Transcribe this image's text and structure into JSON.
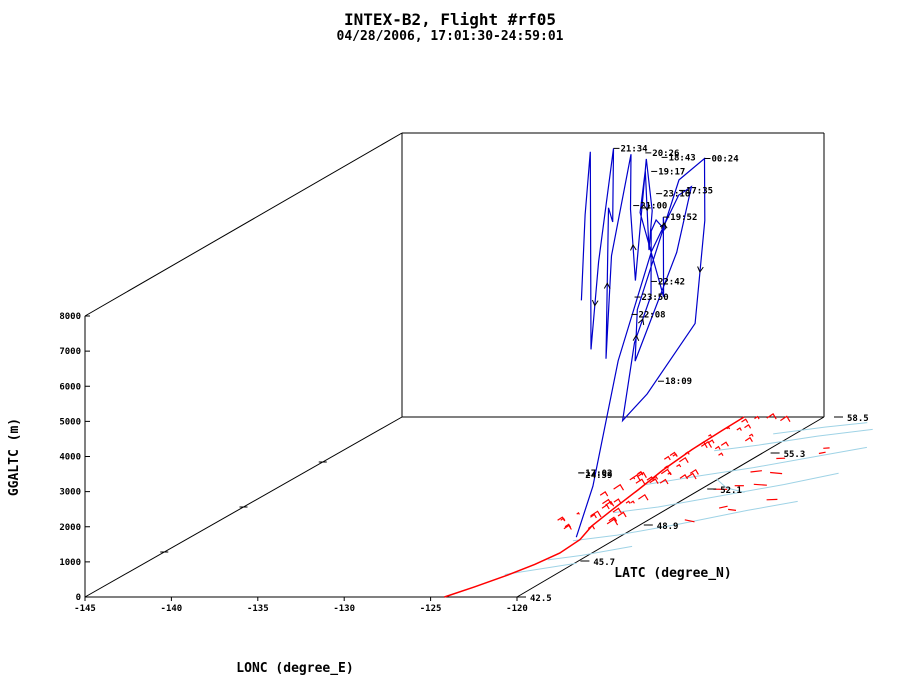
{
  "chart_data": {
    "type": "line",
    "title": "INTEX-B2, Flight #rf05",
    "subtitle": "04/28/2006, 17:01:30-24:59:01",
    "xlabel": "LONC (degree_E)",
    "ylabel": "LATC (degree_N)",
    "zlabel": "GGALTC (m)",
    "xlim": [
      -145,
      -120
    ],
    "ylim": [
      42.5,
      58.5
    ],
    "zlim": [
      0,
      8000
    ],
    "x_ticks": [
      "-145",
      "-140",
      "-135",
      "-130",
      "-125",
      "-120"
    ],
    "y_ticks": [
      "42.5",
      "45.7",
      "48.9",
      "52.1",
      "55.3",
      "58.5"
    ],
    "z_ticks": [
      "0",
      "1000",
      "2000",
      "3000",
      "4000",
      "5000",
      "6000",
      "7000",
      "8000"
    ],
    "colors": {
      "track": "#0000cc",
      "land": "#ff0000",
      "rivers": "#9fd3e6",
      "axes": "#000000"
    },
    "series": [
      {
        "points": [
          {
            "lon": -122.3,
            "lat": 47.5,
            "alt": 100
          },
          {
            "lon": -122.6,
            "lat": 48.6,
            "alt": 1200
          },
          {
            "lon": -123.2,
            "lat": 50.4,
            "alt": 4200
          },
          {
            "lon": -123.8,
            "lat": 52.6,
            "alt": 6600
          },
          {
            "lon": -124.4,
            "lat": 54.5,
            "alt": 7600
          },
          {
            "lon": -124.7,
            "lat": 55.4,
            "alt": 7550
          },
          {
            "lon": -124.4,
            "lat": 54.4,
            "alt": 6000
          },
          {
            "lon": -123.6,
            "lat": 51.6,
            "alt": 3800
          },
          {
            "lon": -123.7,
            "lat": 51.8,
            "alt": 5200
          },
          {
            "lon": -124.5,
            "lat": 54.6,
            "alt": 8000
          },
          {
            "lon": -125.2,
            "lat": 56.5,
            "alt": 8000
          },
          {
            "lon": -125.3,
            "lat": 56.6,
            "alt": 6200
          },
          {
            "lon": -125.4,
            "lat": 56.2,
            "alt": 3400
          },
          {
            "lon": -126.0,
            "lat": 54.3,
            "alt": 2000
          },
          {
            "lon": -126.5,
            "lat": 53.5,
            "alt": 1500
          },
          {
            "lon": -127.3,
            "lat": 54.8,
            "alt": 3300
          },
          {
            "lon": -128.3,
            "lat": 56.5,
            "alt": 4100
          },
          {
            "lon": -128.4,
            "lat": 56.6,
            "alt": 5900
          },
          {
            "lon": -128.0,
            "lat": 56.5,
            "alt": 6250
          },
          {
            "lon": -127.3,
            "lat": 56.3,
            "alt": 6050
          },
          {
            "lon": -127.7,
            "lat": 56.6,
            "alt": 6300
          },
          {
            "lon": -127.8,
            "lat": 56.7,
            "alt": 4000
          },
          {
            "lon": -129.5,
            "lat": 57.0,
            "alt": 6300
          },
          {
            "lon": -129.2,
            "lat": 57.0,
            "alt": 7500
          },
          {
            "lon": -129.1,
            "lat": 57.1,
            "alt": 5200
          },
          {
            "lon": -128.8,
            "lat": 57.0,
            "alt": 6350
          },
          {
            "lon": -129.6,
            "lat": 57.4,
            "alt": 7700
          },
          {
            "lon": -130.0,
            "lat": 57.2,
            "alt": 4300
          },
          {
            "lon": -130.4,
            "lat": 57.3,
            "alt": 6300
          },
          {
            "lon": -130.6,
            "lat": 57.5,
            "alt": 7800
          },
          {
            "lon": -130.7,
            "lat": 56.6,
            "alt": 5200
          },
          {
            "lon": -130.9,
            "lat": 56.5,
            "alt": 2300
          },
          {
            "lon": -131.1,
            "lat": 56.8,
            "alt": 6500
          },
          {
            "lon": -131.2,
            "lat": 57.1,
            "alt": 6000
          },
          {
            "lon": -131.5,
            "lat": 57.4,
            "alt": 8000
          },
          {
            "lon": -131.9,
            "lat": 57.0,
            "alt": 4900
          },
          {
            "lon": -132.0,
            "lat": 56.7,
            "alt": 2500
          },
          {
            "lon": -132.5,
            "lat": 57.1,
            "alt": 8000
          },
          {
            "lon": -132.8,
            "lat": 57.1,
            "alt": 6200
          },
          {
            "lon": -132.9,
            "lat": 57.0,
            "alt": 3800
          }
        ]
      }
    ],
    "annotations": [
      {
        "text": "00:24",
        "lon": -125.2,
        "lat": 56.5,
        "alt": 8000
      },
      {
        "text": "17:35",
        "lon": -124.5,
        "lat": 54.6,
        "alt": 7700
      },
      {
        "text": "18:43",
        "lon": -127.8,
        "lat": 56.6,
        "alt": 8000
      },
      {
        "text": "19:17",
        "lon": -128.4,
        "lat": 56.6,
        "alt": 7600
      },
      {
        "text": "23:16",
        "lon": -128.0,
        "lat": 56.5,
        "alt": 7000
      },
      {
        "text": "19:52",
        "lon": -127.7,
        "lat": 56.6,
        "alt": 6300
      },
      {
        "text": "20:26",
        "lon": -129.2,
        "lat": 57.0,
        "alt": 8000
      },
      {
        "text": "21:34",
        "lon": -131.5,
        "lat": 57.4,
        "alt": 8000
      },
      {
        "text": "21:00",
        "lon": -129.9,
        "lat": 57.0,
        "alt": 6500
      },
      {
        "text": "23:50",
        "lon": -127.3,
        "lat": 54.8,
        "alt": 4600
      },
      {
        "text": "22:42",
        "lon": -128.3,
        "lat": 56.5,
        "alt": 4500
      },
      {
        "text": "22:08",
        "lon": -130.0,
        "lat": 57.0,
        "alt": 3400
      },
      {
        "text": "18:09",
        "lon": -125.6,
        "lat": 54.5,
        "alt": 2300
      },
      {
        "text": "17:02",
        "lon": -122.3,
        "lat": 47.6,
        "alt": 1900
      },
      {
        "text": "24:59",
        "lon": -122.3,
        "lat": 47.6,
        "alt": 1900
      }
    ],
    "land_segments": [
      {
        "lon": -124.2,
        "lat": 42.5
      },
      {
        "lon": -123.5,
        "lat": 43.4
      },
      {
        "lon": -122.8,
        "lat": 44.4
      },
      {
        "lon": -122.3,
        "lat": 45.4
      },
      {
        "lon": -122.0,
        "lat": 46.4
      },
      {
        "lon": -122.2,
        "lat": 47.6
      },
      {
        "lon": -122.9,
        "lat": 48.8
      },
      {
        "lon": -123.4,
        "lat": 50.3
      },
      {
        "lon": -123.9,
        "lat": 52.0
      },
      {
        "lon": -124.5,
        "lat": 53.8
      },
      {
        "lon": -124.9,
        "lat": 55.6
      },
      {
        "lon": -125.1,
        "lat": 57.3
      },
      {
        "lon": -125.2,
        "lat": 58.5
      }
    ],
    "grid": false,
    "legend": "none"
  }
}
